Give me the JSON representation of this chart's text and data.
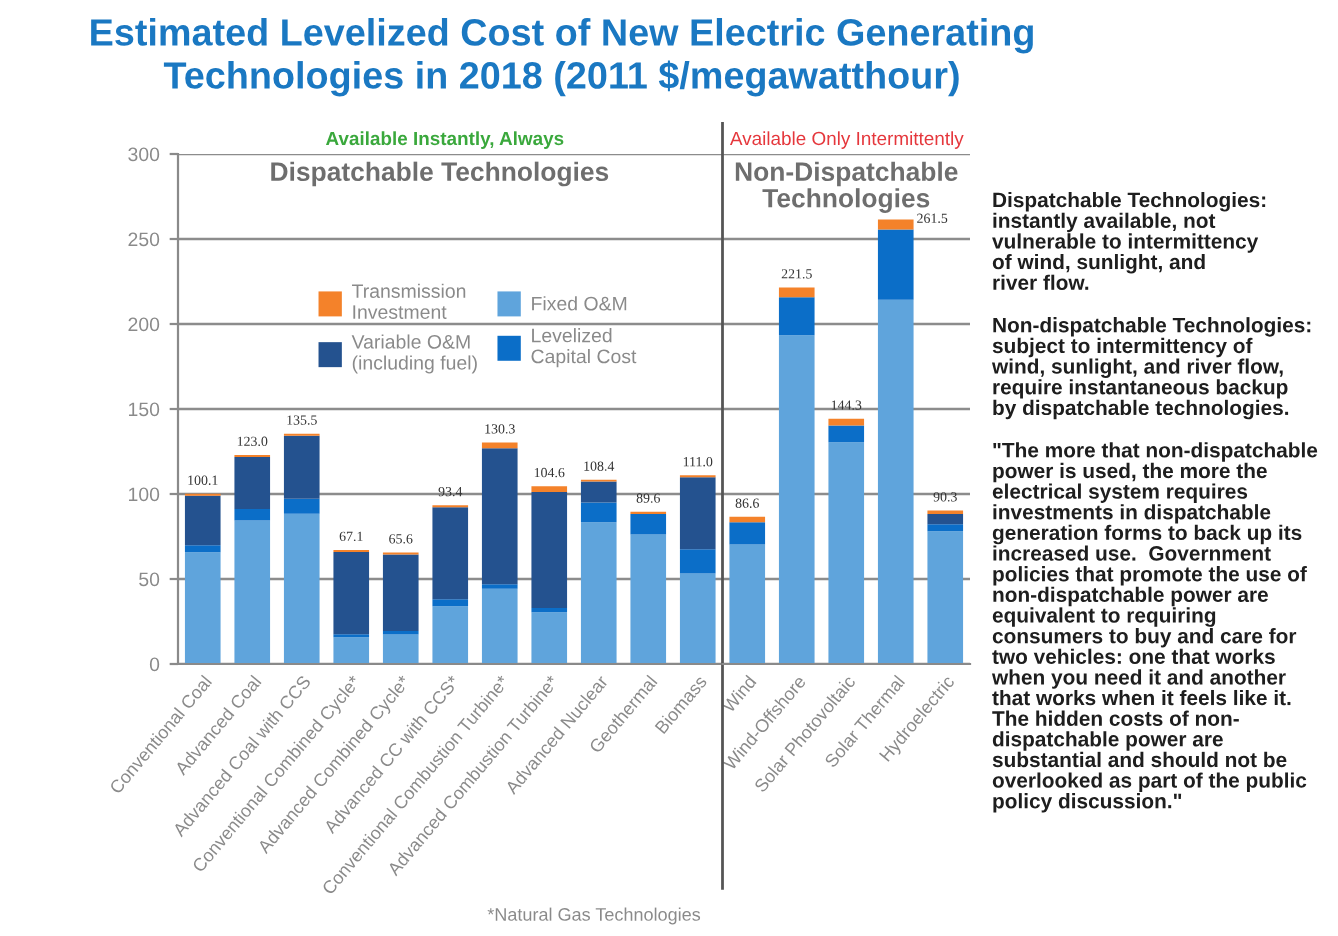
{
  "chart_data": [
    {
      "type": "bar",
      "title": "Estimated Levelized Cost of New Electric Generating\nTechnologies in 2018 (2011 $/megawatthour)",
      "subtitle": "Available Instantly, Always",
      "categories": [
        "Conventional Coal",
        "Advanced Coal",
        "Advanced Coal with CCS",
        "Conventional Combined Cycle*",
        "Advanced Combined Cycle*",
        "Advanced CC with CCS*",
        "Conventional Combustion Turbine*",
        "Advanced Combustion Turbine*",
        "Advanced Nuclear",
        "Geothermal",
        "Biomass"
      ],
      "series": [
        {
          "name": "Fixed O&M",
          "color": "#5fa4dc",
          "values": [
            65.7,
            84.4,
            88.4,
            15.8,
            17.4,
            34.0,
            44.2,
            30.4,
            83.4,
            76.2,
            53.2
          ]
        },
        {
          "name": "Levelized\nCapital Cost",
          "color": "#0b6ec8",
          "values": [
            4.1,
            6.8,
            8.8,
            1.7,
            2.0,
            4.1,
            2.7,
            2.6,
            11.6,
            12.0,
            14.3
          ]
        },
        {
          "name": "Variable O&M\n(including fuel)",
          "color": "#24528f",
          "values": [
            29.1,
            30.6,
            37.1,
            48.4,
            45.0,
            54.1,
            80.0,
            68.2,
            12.3,
            0.0,
            42.3
          ]
        },
        {
          "name": "Transmission\nInvestment",
          "color": "#f4822a",
          "values": [
            1.2,
            1.2,
            1.2,
            1.2,
            1.2,
            1.2,
            3.4,
            3.4,
            1.1,
            1.4,
            1.2
          ]
        }
      ],
      "stacked": true,
      "ylim": [
        0,
        300
      ],
      "yticks": [
        0,
        50,
        100,
        150,
        200,
        250,
        300
      ],
      "grid": "y",
      "legend": "top",
      "totals": [
        "100.1",
        "123.0",
        "135.5",
        "67.1",
        "65.6",
        "93.4",
        "130.3",
        "104.6",
        "108.4",
        "89.6",
        "111.0"
      ],
      "annotations": [
        "Dispatchable Technologies",
        "*Natural Gas Technologies"
      ]
    },
    {
      "type": "bar",
      "subtitle": "Available Only Intermittently",
      "categories": [
        "Wind",
        "Wind-Offshore",
        "Solar Photovoltaic",
        "Solar Thermal",
        "Hydroelectric"
      ],
      "series": [
        {
          "color": "#5fa4dc",
          "values": [
            70.3,
            193.4,
            130.4,
            214.2,
            78.1
          ]
        },
        {
          "color": "#0b6ec8",
          "values": [
            13.1,
            22.4,
            9.9,
            41.4,
            4.1
          ]
        },
        {
          "color": "#24528f",
          "values": [
            0.0,
            0.0,
            0.0,
            0.0,
            6.1
          ]
        },
        {
          "color": "#f4822a",
          "values": [
            3.2,
            5.7,
            4.0,
            5.9,
            2.0
          ]
        }
      ],
      "stacked": true,
      "ylim": [
        0,
        300
      ],
      "yticks": [
        0,
        50,
        100,
        150,
        200,
        250,
        300
      ],
      "grid": "y",
      "tick_labels": "x",
      "totals": [
        "86.6",
        "221.5",
        "144.3",
        "261.5",
        "90.3"
      ],
      "annotations": [
        "Non-Dispatchable\nTechnologies",
        "Dispatchable Technologies:\ninstantly available, not\nvulnerable to intermittency\nof wind, sunlight, and\nriver flow.",
        "Non-dispatchable Technologies:\nsubject to intermittency of\nwind, sunlight, and river flow,\nrequire instantaneous backup\nby dispatchable technologies.",
        "\"The more that non-dispatchable\npower is used, the more the\nelectrical system requires\ninvestments in dispatchable\ngeneration forms to back up its\nincreased use.  Government\npolicies that promote the use of\nnon-dispatchable power are\nequivalent to requiring\nconsumers to buy and care for\ntwo vehicles: one that works\nwhen you need it and another\nthat works when it feels like it.\nThe hidden costs of non-\ndispatchable power are\nsubstantial and should not be\noverlooked as part of the public\npolicy discussion.\""
      ]
    }
  ]
}
